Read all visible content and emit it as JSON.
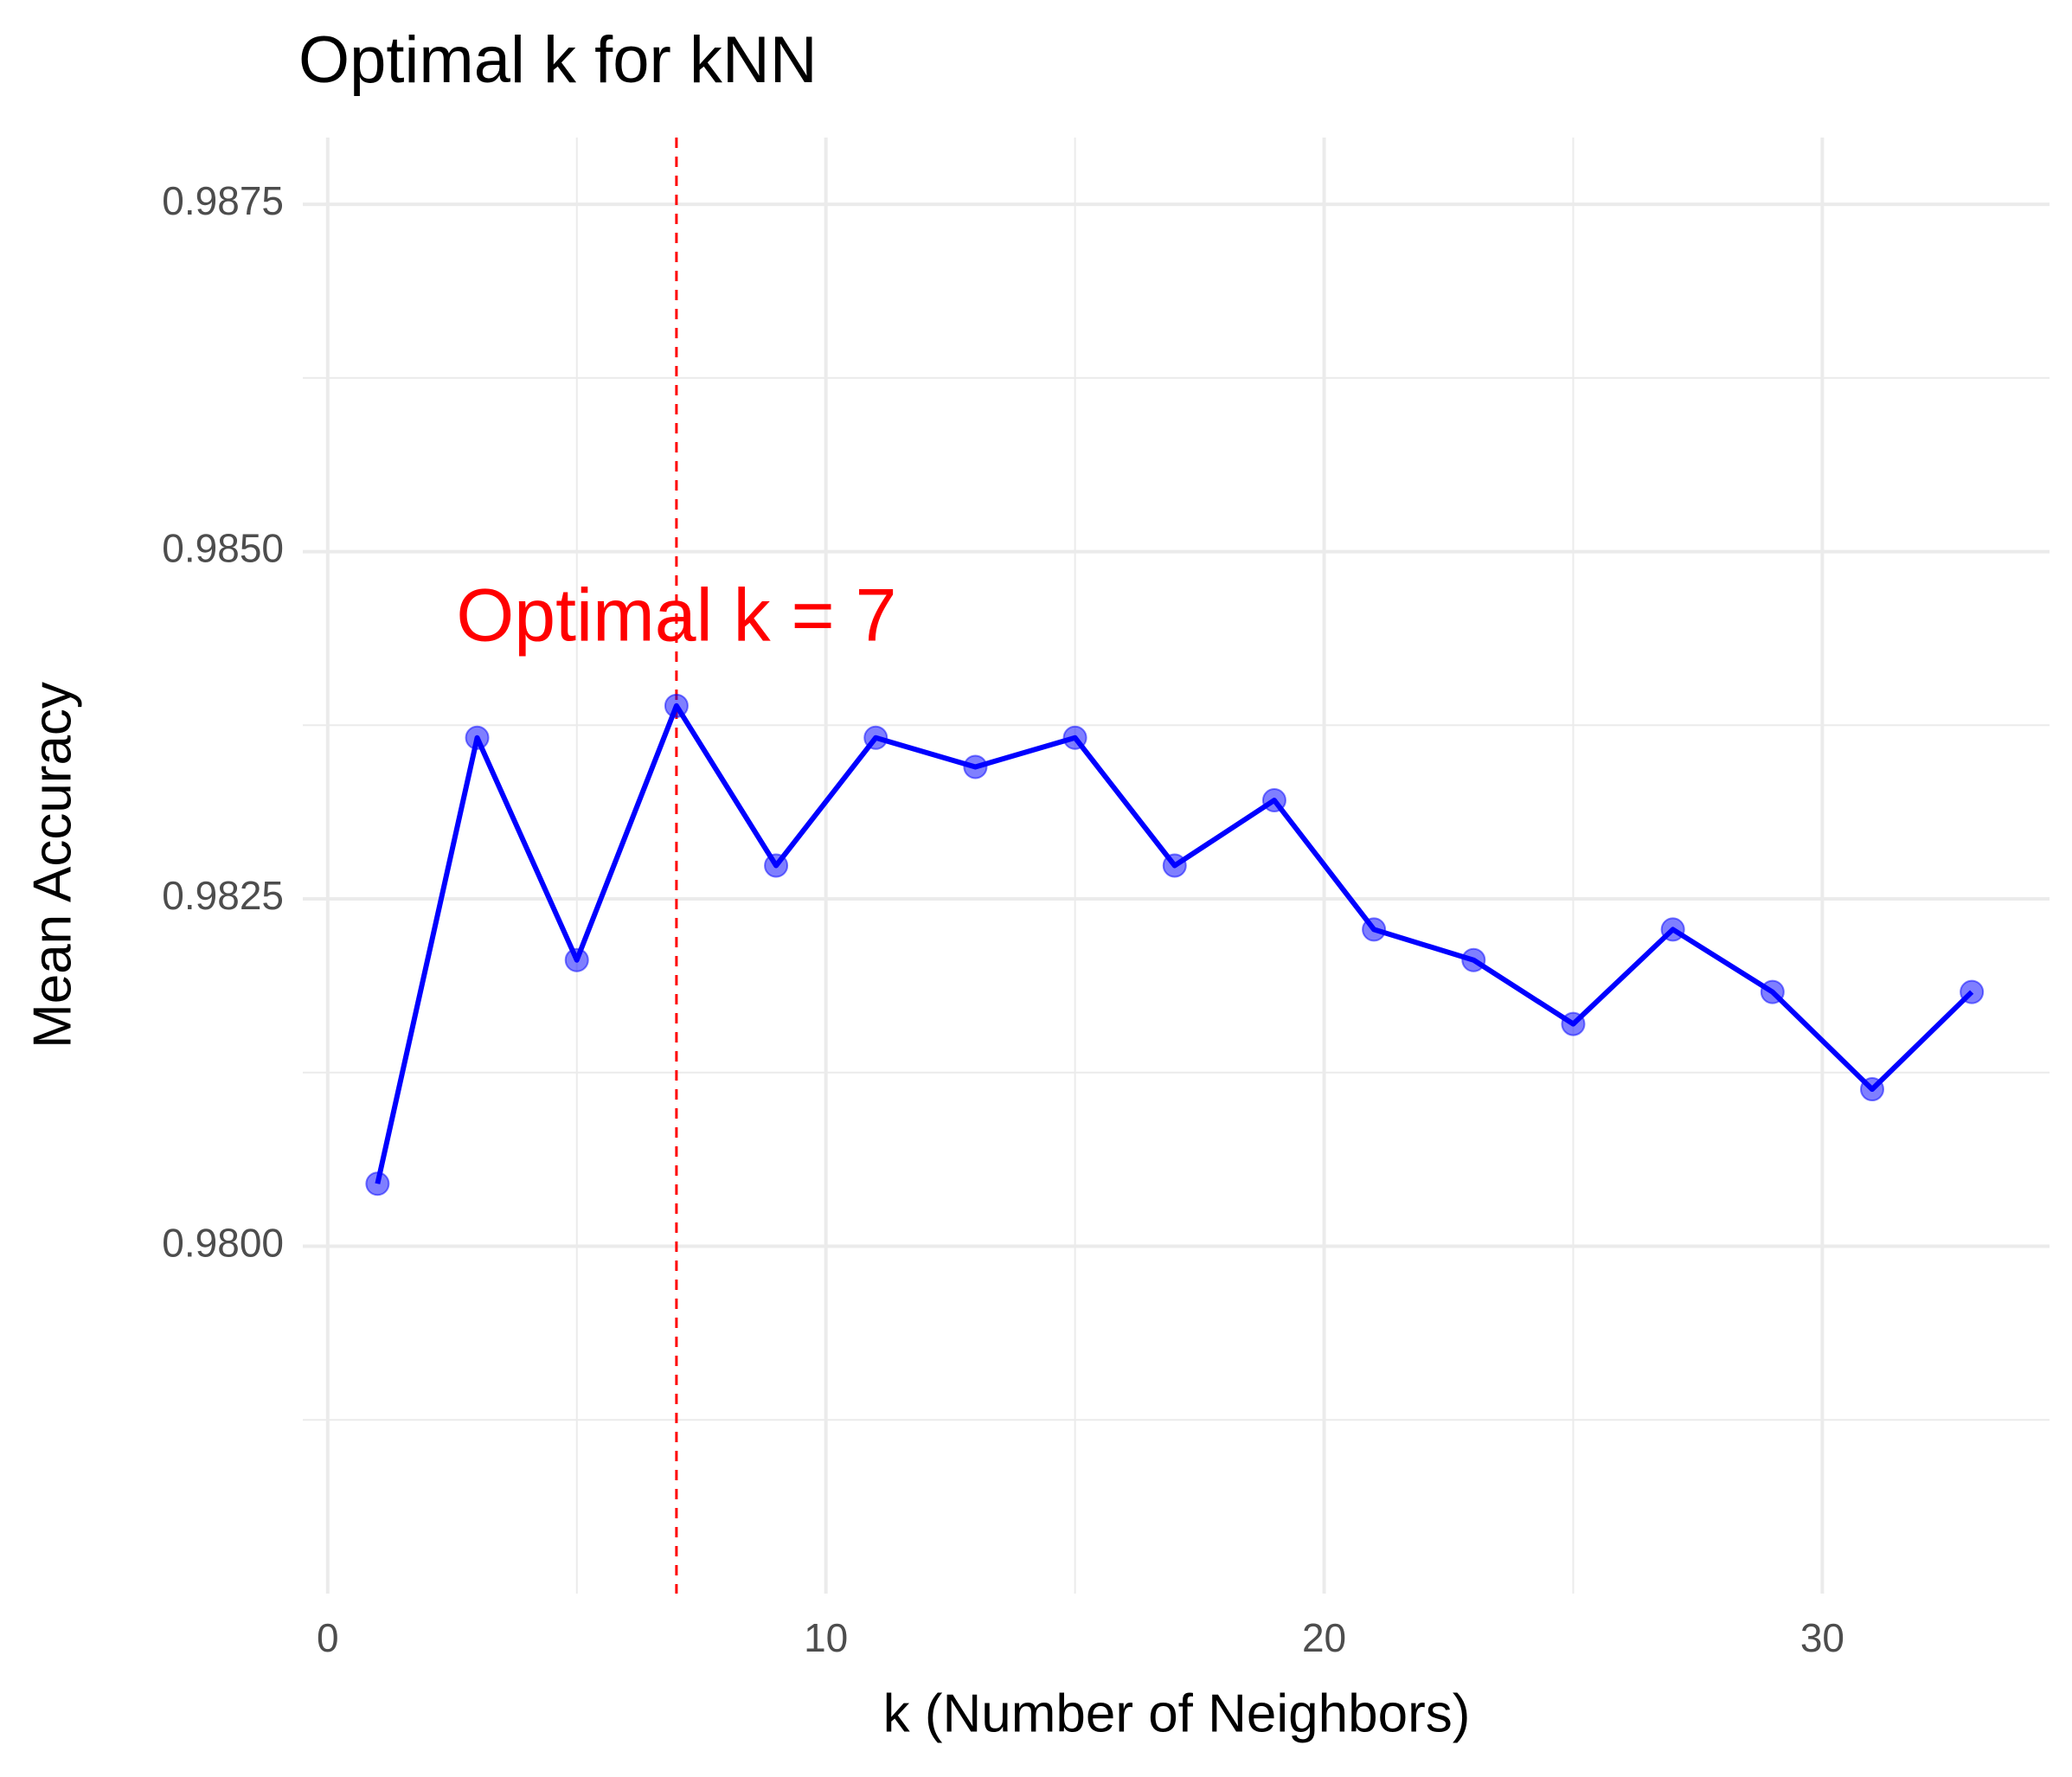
{
  "chart_data": {
    "type": "line",
    "title": "Optimal k for kNN",
    "x_label": "k (Number of Neighbors)",
    "y_label": "Mean Accuracy",
    "x": [
      1,
      3,
      5,
      7,
      9,
      11,
      13,
      15,
      17,
      19,
      21,
      23,
      25,
      27,
      29,
      31,
      33
    ],
    "values": [
      0.98045,
      0.98366,
      0.98206,
      0.98389,
      0.98274,
      0.98366,
      0.98345,
      0.98366,
      0.98274,
      0.98321,
      0.98228,
      0.98206,
      0.9816,
      0.98228,
      0.98183,
      0.98113,
      0.98183
    ],
    "color": "#0000ff",
    "xlim": [
      -0.5,
      34.56
    ],
    "ylim": [
      0.9775,
      0.98798
    ],
    "xticks": [
      0,
      10,
      20,
      30
    ],
    "yticks": [
      {
        "value": 0.98,
        "label": "0.9800"
      },
      0.9825,
      {
        "value": 0.985,
        "label": "0.9850"
      },
      0.9875
    ],
    "x_minor_ticks": [
      5,
      15,
      25
    ],
    "y_minor_ticks": [
      0.97875,
      0.98125,
      0.98375,
      0.98625
    ],
    "grid": true,
    "vline": {
      "x": 7,
      "color": "#ff0000"
    },
    "annotation": {
      "text": "Optimal k = 7",
      "x": 7,
      "y": 0.9845,
      "color": "#ff0000"
    }
  }
}
